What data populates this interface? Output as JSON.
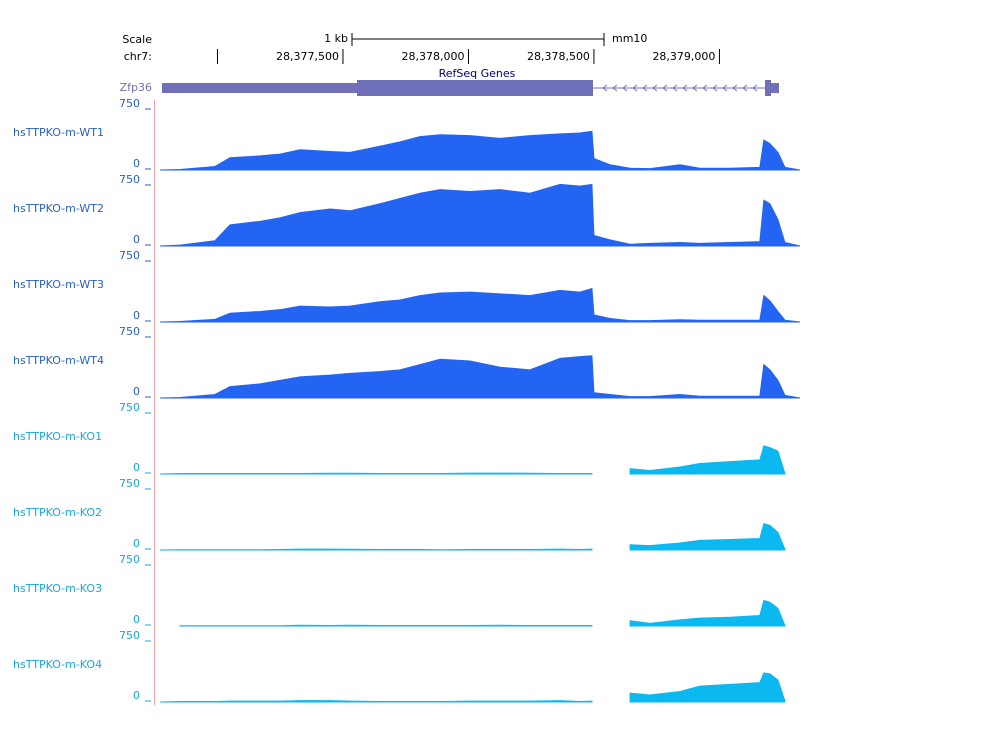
{
  "scale": {
    "label": "Scale",
    "bar_label": "1 kb",
    "assembly": "mm10"
  },
  "chrom": {
    "label": "chr7:",
    "ticks": [
      {
        "value": 28377000,
        "label": null
      },
      {
        "value": 28377500,
        "label": "28,377,500"
      },
      {
        "value": 28378000,
        "label": "28,378,000"
      },
      {
        "value": 28378500,
        "label": "28,378,500"
      },
      {
        "value": 28379000,
        "label": "28,379,000"
      }
    ]
  },
  "gene_track": {
    "title": "RefSeq Genes",
    "gene": "Zfp36"
  },
  "chart_data": {
    "type": "area",
    "xlim": [
      28376771,
      28379321
    ],
    "x": [
      28376771,
      28376851,
      28376990,
      28377050,
      28377169,
      28377249,
      28377329,
      28377448,
      28377528,
      28377647,
      28377727,
      28377807,
      28377887,
      28378006,
      28378126,
      28378245,
      28378365,
      28378444,
      28378492,
      28378500,
      28378564,
      28378644,
      28378723,
      28378843,
      28378922,
      28379042,
      28379161,
      28379177,
      28379201,
      28379233,
      28379261,
      28379321
    ],
    "tracks": [
      {
        "name": "hsTTPKO-m-WT1",
        "color": "#2464f2",
        "label_color": "#2a5fc4",
        "ylim": [
          0,
          750
        ],
        "yticks": [
          0,
          750
        ],
        "values": [
          0,
          5,
          40,
          140,
          160,
          180,
          230,
          210,
          200,
          270,
          320,
          380,
          400,
          390,
          360,
          390,
          410,
          420,
          440,
          130,
          60,
          20,
          15,
          60,
          20,
          20,
          30,
          340,
          300,
          200,
          30,
          0
        ]
      },
      {
        "name": "hsTTPKO-m-WT2",
        "color": "#2464f2",
        "label_color": "#2a5fc4",
        "ylim": [
          0,
          750
        ],
        "yticks": [
          0,
          750
        ],
        "values": [
          0,
          10,
          60,
          240,
          280,
          320,
          380,
          420,
          400,
          480,
          540,
          600,
          640,
          620,
          640,
          600,
          700,
          680,
          700,
          120,
          70,
          20,
          30,
          40,
          30,
          40,
          50,
          520,
          480,
          300,
          40,
          0
        ]
      },
      {
        "name": "hsTTPKO-m-WT3",
        "color": "#2464f2",
        "label_color": "#2a5fc4",
        "ylim": [
          0,
          750
        ],
        "yticks": [
          0,
          750
        ],
        "values": [
          0,
          5,
          30,
          100,
          120,
          140,
          180,
          170,
          180,
          230,
          250,
          300,
          330,
          340,
          320,
          300,
          360,
          340,
          380,
          80,
          40,
          15,
          15,
          25,
          20,
          20,
          20,
          300,
          240,
          120,
          20,
          0
        ]
      },
      {
        "name": "hsTTPKO-m-WT4",
        "color": "#2464f2",
        "label_color": "#2a5fc4",
        "ylim": [
          0,
          750
        ],
        "yticks": [
          0,
          750
        ],
        "values": [
          0,
          5,
          40,
          130,
          160,
          200,
          240,
          260,
          280,
          300,
          320,
          380,
          440,
          420,
          350,
          320,
          450,
          470,
          480,
          60,
          40,
          15,
          15,
          40,
          20,
          20,
          20,
          380,
          320,
          200,
          30,
          0
        ]
      },
      {
        "name": "hsTTPKO-m-KO1",
        "color": "#0bb8f0",
        "label_color": "#1aa6dc",
        "ylim": [
          0,
          750
        ],
        "yticks": [
          0,
          750
        ],
        "values": [
          0,
          5,
          5,
          5,
          5,
          5,
          5,
          8,
          8,
          5,
          5,
          5,
          5,
          10,
          10,
          8,
          5,
          5,
          5,
          null,
          null,
          60,
          40,
          80,
          120,
          140,
          160,
          320,
          300,
          260,
          5,
          null
        ]
      },
      {
        "name": "hsTTPKO-m-KO2",
        "color": "#0bb8f0",
        "label_color": "#1aa6dc",
        "ylim": [
          0,
          750
        ],
        "yticks": [
          0,
          750
        ],
        "values": [
          0,
          3,
          3,
          3,
          3,
          5,
          10,
          10,
          8,
          5,
          5,
          5,
          3,
          5,
          5,
          5,
          10,
          5,
          10,
          null,
          null,
          60,
          50,
          80,
          110,
          120,
          130,
          300,
          280,
          200,
          5,
          null
        ]
      },
      {
        "name": "hsTTPKO-m-KO3",
        "color": "#0bb8f0",
        "label_color": "#1aa6dc",
        "ylim": [
          0,
          750
        ],
        "yticks": [
          0,
          750
        ],
        "values": [
          null,
          3,
          3,
          3,
          3,
          3,
          8,
          5,
          8,
          5,
          5,
          5,
          5,
          5,
          8,
          5,
          5,
          5,
          5,
          null,
          null,
          60,
          30,
          70,
          90,
          100,
          120,
          290,
          270,
          200,
          5,
          null
        ]
      },
      {
        "name": "hsTTPKO-m-KO4",
        "color": "#0bb8f0",
        "label_color": "#1aa6dc",
        "ylim": [
          0,
          750
        ],
        "yticks": [
          0,
          750
        ],
        "values": [
          0,
          5,
          5,
          10,
          10,
          10,
          15,
          15,
          10,
          5,
          5,
          5,
          5,
          10,
          10,
          10,
          15,
          5,
          10,
          null,
          null,
          100,
          80,
          120,
          180,
          200,
          220,
          330,
          320,
          250,
          10,
          null
        ]
      }
    ]
  }
}
